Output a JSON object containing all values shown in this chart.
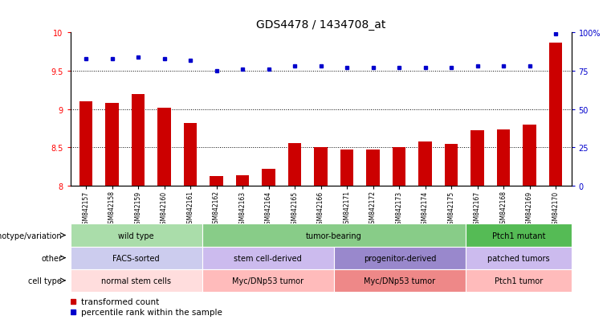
{
  "title": "GDS4478 / 1434708_at",
  "samples": [
    "GSM842157",
    "GSM842158",
    "GSM842159",
    "GSM842160",
    "GSM842161",
    "GSM842162",
    "GSM842163",
    "GSM842164",
    "GSM842165",
    "GSM842166",
    "GSM842171",
    "GSM842172",
    "GSM842173",
    "GSM842174",
    "GSM842175",
    "GSM842167",
    "GSM842168",
    "GSM842169",
    "GSM842170"
  ],
  "bar_values": [
    9.1,
    9.08,
    9.2,
    9.02,
    8.82,
    8.12,
    8.13,
    8.22,
    8.55,
    8.5,
    8.47,
    8.47,
    8.5,
    8.58,
    8.54,
    8.72,
    8.73,
    8.8,
    9.87
  ],
  "dot_values": [
    83,
    83,
    84,
    83,
    82,
    75,
    76,
    76,
    78,
    78,
    77,
    77,
    77,
    77,
    77,
    78,
    78,
    78,
    99
  ],
  "bar_color": "#cc0000",
  "dot_color": "#0000cc",
  "ylim_left": [
    8.0,
    10.0
  ],
  "ylim_right": [
    0,
    100
  ],
  "yticks_left": [
    8.0,
    8.5,
    9.0,
    9.5,
    10.0
  ],
  "ytick_labels_left": [
    "8",
    "8.5",
    "9",
    "9.5",
    "10"
  ],
  "yticks_right": [
    0,
    25,
    50,
    75,
    100
  ],
  "ytick_labels_right": [
    "0",
    "25",
    "50",
    "75",
    "100%"
  ],
  "hlines": [
    8.5,
    9.0,
    9.5
  ],
  "annotation_rows": [
    {
      "label": "genotype/variation",
      "segments": [
        {
          "text": "wild type",
          "start": 0,
          "end": 5,
          "color": "#aaddaa"
        },
        {
          "text": "tumor-bearing",
          "start": 5,
          "end": 15,
          "color": "#88cc88"
        },
        {
          "text": "Ptch1 mutant",
          "start": 15,
          "end": 19,
          "color": "#55bb55"
        }
      ]
    },
    {
      "label": "other",
      "segments": [
        {
          "text": "FACS-sorted",
          "start": 0,
          "end": 5,
          "color": "#ccccee"
        },
        {
          "text": "stem cell-derived",
          "start": 5,
          "end": 10,
          "color": "#ccbbee"
        },
        {
          "text": "progenitor-derived",
          "start": 10,
          "end": 15,
          "color": "#9988cc"
        },
        {
          "text": "patched tumors",
          "start": 15,
          "end": 19,
          "color": "#ccbbee"
        }
      ]
    },
    {
      "label": "cell type",
      "segments": [
        {
          "text": "normal stem cells",
          "start": 0,
          "end": 5,
          "color": "#ffdddd"
        },
        {
          "text": "Myc/DNp53 tumor",
          "start": 5,
          "end": 10,
          "color": "#ffbbbb"
        },
        {
          "text": "Myc/DNp53 tumor",
          "start": 10,
          "end": 15,
          "color": "#ee8888"
        },
        {
          "text": "Ptch1 tumor",
          "start": 15,
          "end": 19,
          "color": "#ffbbbb"
        }
      ]
    }
  ],
  "legend_items": [
    {
      "label": "transformed count",
      "color": "#cc0000",
      "marker": "s"
    },
    {
      "label": "percentile rank within the sample",
      "color": "#0000cc",
      "marker": "s"
    }
  ],
  "bg_color": "#ffffff",
  "title_fontsize": 10,
  "tick_fontsize": 7,
  "annot_fontsize": 7,
  "label_fontsize": 7
}
